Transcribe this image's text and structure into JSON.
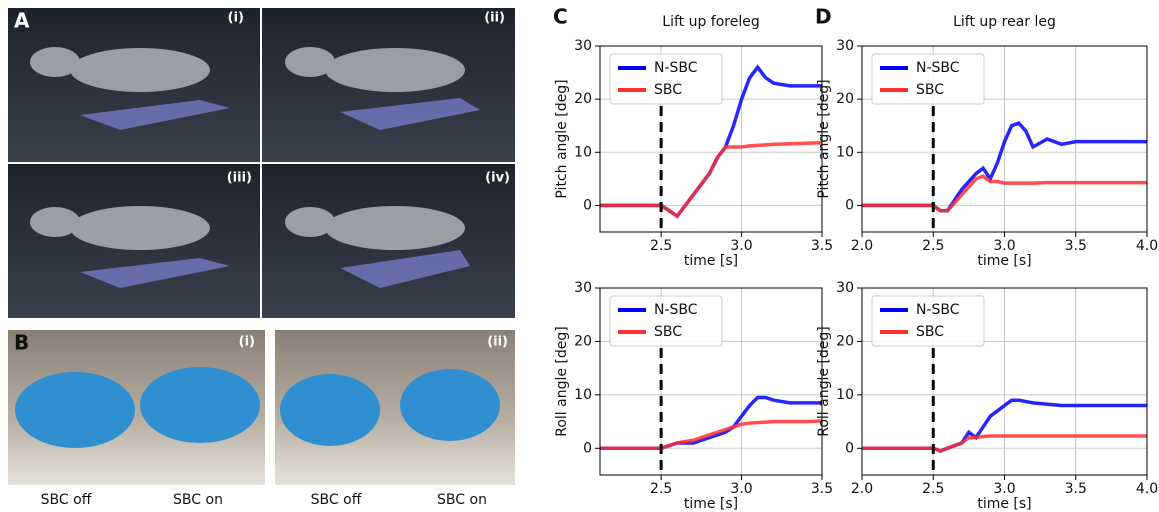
{
  "panels": {
    "A": {
      "label": "A",
      "tiles": [
        "(i)",
        "(ii)",
        "(iii)",
        "(iv)"
      ]
    },
    "B": {
      "label": "B",
      "tiles": [
        "(i)",
        "(ii)"
      ],
      "captions": [
        "SBC off",
        "SBC on",
        "SBC off",
        "SBC on"
      ]
    }
  },
  "chart_data": [
    {
      "type": "line",
      "panel": "C",
      "title": "Lift up foreleg",
      "x_label": "time [s]",
      "y_label": "Pitch angle [deg]",
      "x": [
        2.12,
        2.5,
        2.55,
        2.6,
        2.65,
        2.7,
        2.75,
        2.8,
        2.85,
        2.9,
        2.95,
        3.0,
        3.05,
        3.1,
        3.15,
        3.2,
        3.3,
        3.4,
        3.5
      ],
      "series": [
        {
          "name": "N-SBC",
          "color": "#0000ff",
          "values": [
            0,
            0,
            -1,
            -2,
            0,
            2,
            4,
            6,
            9,
            11,
            15,
            20,
            24,
            26,
            24,
            23,
            22.5,
            22.5,
            22.5
          ]
        },
        {
          "name": "SBC",
          "color": "#ff3030",
          "values": [
            0,
            0,
            -1,
            -2,
            0,
            2,
            4,
            6,
            9,
            11,
            11,
            11,
            11.2,
            11.3,
            11.4,
            11.5,
            11.6,
            11.7,
            11.8
          ]
        }
      ],
      "xlim": [
        2.12,
        3.5
      ],
      "xticks": [
        2.5,
        {
          "value": 3,
          "label": "3.0"
        },
        3.5
      ],
      "ylim": [
        -5,
        30
      ],
      "yticks": [
        0,
        10,
        20,
        30
      ],
      "vline_x": 2.5,
      "grid": true,
      "legend": "upper left"
    },
    {
      "type": "line",
      "panel": "D",
      "title": "Lift up rear leg",
      "x_label": "time [s]",
      "y_label": "Pitch angle [deg]",
      "x": [
        2.0,
        2.5,
        2.55,
        2.6,
        2.7,
        2.8,
        2.85,
        2.9,
        2.95,
        3.0,
        3.05,
        3.1,
        3.15,
        3.2,
        3.3,
        3.4,
        3.5,
        3.7,
        4.0
      ],
      "series": [
        {
          "name": "N-SBC",
          "color": "#0000ff",
          "values": [
            0,
            0,
            -1,
            -1,
            3,
            6,
            7,
            5,
            8,
            12,
            15,
            15.5,
            14,
            11,
            12.5,
            11.5,
            12,
            12,
            12
          ]
        },
        {
          "name": "SBC",
          "color": "#ff3030",
          "values": [
            0,
            0,
            -1,
            -1,
            2,
            5,
            5.5,
            4.5,
            4.5,
            4.2,
            4.2,
            4.2,
            4.2,
            4.2,
            4.3,
            4.3,
            4.3,
            4.3,
            4.3
          ]
        }
      ],
      "xlim": [
        2.0,
        4.0
      ],
      "xticks": [
        {
          "value": 2,
          "label": "2.0"
        },
        2.5,
        {
          "value": 3,
          "label": "3.0"
        },
        3.5,
        {
          "value": 4,
          "label": "4.0"
        }
      ],
      "ylim": [
        -5,
        30
      ],
      "yticks": [
        0,
        10,
        20,
        30
      ],
      "vline_x": 2.5,
      "grid": true,
      "legend": "upper left"
    },
    {
      "type": "line",
      "x_label": "time [s]",
      "y_label": "Roll angle [deg]",
      "x": [
        2.12,
        2.5,
        2.55,
        2.6,
        2.7,
        2.8,
        2.9,
        2.95,
        3.0,
        3.05,
        3.1,
        3.15,
        3.2,
        3.3,
        3.4,
        3.5
      ],
      "series": [
        {
          "name": "N-SBC",
          "color": "#0000ff",
          "values": [
            0,
            0,
            0.5,
            1,
            1,
            2,
            3,
            4,
            6,
            8,
            9.5,
            9.5,
            9,
            8.5,
            8.5,
            8.5
          ]
        },
        {
          "name": "SBC",
          "color": "#ff3030",
          "values": [
            0,
            0,
            0.5,
            1,
            1.5,
            2.5,
            3.5,
            4,
            4.5,
            4.7,
            4.8,
            4.9,
            5,
            5,
            5,
            5.1
          ]
        }
      ],
      "xlim": [
        2.12,
        3.5
      ],
      "xticks": [
        2.5,
        {
          "value": 3,
          "label": "3.0"
        },
        3.5
      ],
      "ylim": [
        -5,
        30
      ],
      "yticks": [
        0,
        10,
        20,
        30
      ],
      "vline_x": 2.5,
      "grid": true,
      "legend": "upper left"
    },
    {
      "type": "line",
      "x_label": "time [s]",
      "y_label": "Roll angle [deg]",
      "x": [
        2.0,
        2.5,
        2.55,
        2.6,
        2.7,
        2.75,
        2.8,
        2.85,
        2.9,
        3.0,
        3.05,
        3.1,
        3.2,
        3.4,
        3.6,
        4.0
      ],
      "series": [
        {
          "name": "N-SBC",
          "color": "#0000ff",
          "values": [
            0,
            0,
            -0.5,
            0,
            1,
            3,
            2,
            4,
            6,
            8,
            9,
            9,
            8.5,
            8,
            8,
            8
          ]
        },
        {
          "name": "SBC",
          "color": "#ff3030",
          "values": [
            0,
            0,
            -0.5,
            0,
            1,
            2,
            2,
            2.2,
            2.3,
            2.3,
            2.3,
            2.3,
            2.3,
            2.3,
            2.3,
            2.3
          ]
        }
      ],
      "xlim": [
        2.0,
        4.0
      ],
      "xticks": [
        {
          "value": 2,
          "label": "2.0"
        },
        2.5,
        {
          "value": 3,
          "label": "3.0"
        },
        3.5,
        {
          "value": 4,
          "label": "4.0"
        }
      ],
      "ylim": [
        -5,
        30
      ],
      "yticks": [
        0,
        10,
        20,
        30
      ],
      "vline_x": 2.5,
      "grid": true,
      "legend": "upper left"
    }
  ]
}
